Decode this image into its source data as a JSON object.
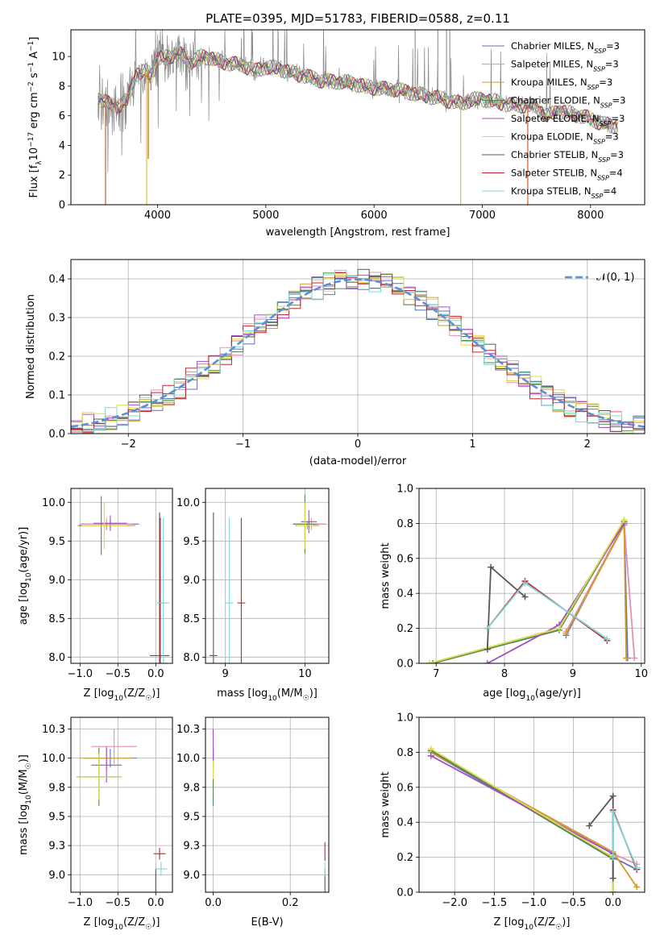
{
  "title": "PLATE=0395, MJD=51783, FIBERID=0588, z=0.11",
  "colors": {
    "palette": [
      "#5b73c6",
      "#e58fb3",
      "#d29a2b",
      "#4f8a52",
      "#a44fc5",
      "#dada4a",
      "#555555",
      "#c0262d",
      "#7fd6d6"
    ],
    "data": "#888888",
    "normal": "#5b8fd8",
    "grid": "#b0b0b0"
  },
  "legend_spectrum": [
    "Chabrier MILES, N_SSP=3",
    "Salpeter MILES, N_SSP=3",
    "Kroupa MILES, N_SSP=3",
    "Chabrier ELODIE, N_SSP=3",
    "Salpeter ELODIE, N_SSP=3",
    "Kroupa ELODIE, N_SSP=3",
    "Chabrier STELIB, N_SSP=3",
    "Salpeter STELIB, N_SSP=4",
    "Kroupa STELIB, N_SSP=4"
  ],
  "legend_hist": "𝒩(0, 1)",
  "chart_data": [
    {
      "id": "spectrum",
      "type": "line",
      "title": "PLATE=0395, MJD=51783, FIBERID=0588, z=0.11",
      "xlabel": "wavelength [Angstrom, rest frame]",
      "ylabel": "Flux [f_λ 10^-17 erg cm^-2 s^-1 A^-1]",
      "xlim": [
        3200,
        8500
      ],
      "ylim": [
        0,
        11.8
      ],
      "xticks": [
        4000,
        5000,
        6000,
        7000,
        8000
      ],
      "yticks": [
        0,
        2,
        4,
        6,
        8,
        10
      ],
      "grid": false,
      "legend_position": "top-right",
      "continuum": [
        [
          3450,
          7.2
        ],
        [
          3550,
          6.8
        ],
        [
          3650,
          6.7
        ],
        [
          3720,
          7.0
        ],
        [
          3800,
          8.8
        ],
        [
          3900,
          9.0
        ],
        [
          3950,
          8.8
        ],
        [
          4000,
          9.8
        ],
        [
          4100,
          10.0
        ],
        [
          4200,
          10.2
        ],
        [
          4300,
          9.6
        ],
        [
          4400,
          10.0
        ],
        [
          4500,
          9.9
        ],
        [
          4600,
          9.6
        ],
        [
          4700,
          9.5
        ],
        [
          4800,
          9.4
        ],
        [
          4900,
          9.0
        ],
        [
          5000,
          9.3
        ],
        [
          5100,
          9.2
        ],
        [
          5200,
          9.0
        ],
        [
          5300,
          8.8
        ],
        [
          5400,
          8.6
        ],
        [
          5500,
          8.4
        ],
        [
          5600,
          8.3
        ],
        [
          5700,
          8.3
        ],
        [
          5800,
          8.2
        ],
        [
          5900,
          8.0
        ],
        [
          6000,
          7.9
        ],
        [
          6100,
          7.8
        ],
        [
          6200,
          7.8
        ],
        [
          6300,
          7.6
        ],
        [
          6400,
          7.5
        ],
        [
          6500,
          7.3
        ],
        [
          6600,
          7.2
        ],
        [
          6700,
          7.0
        ],
        [
          6800,
          6.8
        ],
        [
          6900,
          7.1
        ],
        [
          7000,
          7.1
        ],
        [
          7100,
          7.0
        ],
        [
          7200,
          6.8
        ],
        [
          7300,
          6.7
        ],
        [
          7400,
          6.7
        ],
        [
          7500,
          6.6
        ],
        [
          7600,
          6.0
        ],
        [
          7700,
          6.3
        ],
        [
          7800,
          6.2
        ],
        [
          7900,
          6.0
        ],
        [
          8000,
          5.8
        ],
        [
          8100,
          5.5
        ],
        [
          8200,
          5.3
        ],
        [
          8250,
          5.4
        ]
      ],
      "dips": [
        [
          3520,
          0.0
        ],
        [
          3900,
          0.0
        ],
        [
          3915,
          3.1
        ],
        [
          6800,
          0.0
        ],
        [
          7420,
          0.0
        ]
      ]
    },
    {
      "id": "residuals",
      "type": "histogram",
      "xlabel": "(data-model)/error",
      "ylabel": "Normed distribution",
      "xlim": [
        -2.5,
        2.5
      ],
      "ylim": [
        0,
        0.45
      ],
      "xticks": [
        -2,
        -1,
        0,
        1,
        2
      ],
      "yticks": [
        0.0,
        0.1,
        0.2,
        0.3,
        0.4
      ],
      "grid": true,
      "bin_width": 0.1,
      "legend_position": "top-right"
    },
    {
      "id": "age_vs_Z",
      "type": "errorbar",
      "xlabel": "Z [log10(Z/Z☉)]",
      "ylabel": "age [log10(age/yr)]",
      "xlim": [
        -1.12,
        0.22
      ],
      "ylim": [
        7.92,
        10.18
      ],
      "xticks": [
        -1.0,
        -0.5,
        0.0
      ],
      "yticks": [
        8.0,
        8.5,
        9.0,
        9.5,
        10.0
      ],
      "grid": true,
      "points": [
        {
          "x": -0.6,
          "y": 9.72,
          "xerr": 0.38,
          "yerr": 0.05,
          "c": 0
        },
        {
          "x": -0.65,
          "y": 9.72,
          "xerr": 0.35,
          "yerr": 0.08,
          "c": 1
        },
        {
          "x": -0.65,
          "y": 9.7,
          "xerr": 0.38,
          "yerr": 0.05,
          "c": 2
        },
        {
          "x": -0.72,
          "y": 9.7,
          "xerr": 0.3,
          "yerr": 0.38,
          "c": 3
        },
        {
          "x": -0.6,
          "y": 9.73,
          "xerr": 0.22,
          "yerr": 0.1,
          "c": 4
        },
        {
          "x": -0.68,
          "y": 9.7,
          "xerr": 0.3,
          "yerr": 0.3,
          "c": 5
        },
        {
          "x": 0.05,
          "y": 8.02,
          "xerr": 0.13,
          "yerr": 1.85,
          "c": 6
        },
        {
          "x": 0.06,
          "y": 8.7,
          "xerr": 0.04,
          "yerr": 1.1,
          "c": 7
        },
        {
          "x": 0.1,
          "y": 8.7,
          "xerr": 0.08,
          "yerr": 1.1,
          "c": 8
        }
      ]
    },
    {
      "id": "age_vs_mass",
      "type": "errorbar",
      "xlabel": "mass [log10(M/M☉)]",
      "ylabel": "",
      "xlim": [
        8.75,
        10.3
      ],
      "ylim": [
        7.92,
        10.18
      ],
      "xticks": [
        9,
        10
      ],
      "yticks": [
        8.0,
        8.5,
        9.0,
        9.5,
        10.0
      ],
      "grid": true,
      "points": [
        {
          "x": 10.05,
          "y": 9.72,
          "xerr": 0.2,
          "yerr": 0.05,
          "c": 0
        },
        {
          "x": 10.08,
          "y": 9.72,
          "xerr": 0.2,
          "yerr": 0.08,
          "c": 1
        },
        {
          "x": 10.03,
          "y": 9.7,
          "xerr": 0.15,
          "yerr": 0.05,
          "c": 2
        },
        {
          "x": 10.0,
          "y": 9.72,
          "xerr": 0.15,
          "yerr": 0.38,
          "c": 3
        },
        {
          "x": 10.05,
          "y": 9.75,
          "xerr": 0.1,
          "yerr": 0.15,
          "c": 4
        },
        {
          "x": 10.0,
          "y": 9.7,
          "xerr": 0.1,
          "yerr": 0.3,
          "c": 5
        },
        {
          "x": 8.85,
          "y": 8.02,
          "xerr": 0.05,
          "yerr": 1.85,
          "c": 6
        },
        {
          "x": 9.2,
          "y": 8.7,
          "xerr": 0.05,
          "yerr": 1.1,
          "c": 7
        },
        {
          "x": 9.05,
          "y": 8.7,
          "xerr": 0.05,
          "yerr": 1.1,
          "c": 8
        }
      ]
    },
    {
      "id": "weight_vs_age",
      "type": "line",
      "xlabel": "age [log10(age/yr)]",
      "ylabel": "mass weight",
      "xlim": [
        6.75,
        10.05
      ],
      "ylim": [
        0,
        1.0
      ],
      "xticks": [
        7,
        8,
        9,
        10
      ],
      "yticks": [
        0.0,
        0.2,
        0.4,
        0.6,
        0.8,
        1.0
      ],
      "grid": true,
      "series": [
        {
          "c": 0,
          "x": [
            8.9,
            9.75,
            9.8
          ],
          "y": [
            0.16,
            0.8,
            0.03
          ]
        },
        {
          "c": 1,
          "x": [
            8.9,
            9.75,
            9.9
          ],
          "y": [
            0.18,
            0.8,
            0.03
          ]
        },
        {
          "c": 2,
          "x": [
            8.9,
            9.75,
            9.78
          ],
          "y": [
            0.17,
            0.79,
            0.03
          ]
        },
        {
          "c": 3,
          "x": [
            6.95,
            8.8,
            9.75
          ],
          "y": [
            0.0,
            0.19,
            0.81
          ]
        },
        {
          "c": 4,
          "x": [
            7.75,
            8.8,
            9.75
          ],
          "y": [
            0.0,
            0.22,
            0.8
          ]
        },
        {
          "c": 5,
          "x": [
            6.9,
            8.8,
            9.75
          ],
          "y": [
            0.0,
            0.2,
            0.82
          ]
        },
        {
          "c": 6,
          "x": [
            7.75,
            7.8,
            8.3
          ],
          "y": [
            0.08,
            0.55,
            0.38
          ]
        },
        {
          "c": 7,
          "x": [
            7.75,
            8.3,
            9.5
          ],
          "y": [
            0.2,
            0.47,
            0.13
          ]
        },
        {
          "c": 8,
          "x": [
            7.75,
            8.3,
            9.5
          ],
          "y": [
            0.2,
            0.46,
            0.14
          ]
        }
      ]
    },
    {
      "id": "mass_vs_Z",
      "type": "errorbar",
      "xlabel": "Z [log10(Z/Z☉)]",
      "ylabel": "mass [log10(M/M☉)]",
      "xlim": [
        -1.12,
        0.22
      ],
      "ylim": [
        8.85,
        10.35
      ],
      "xticks": [
        -1.0,
        -0.5,
        0.0
      ],
      "yticks": [
        9.0,
        9.25,
        9.5,
        9.75,
        10.0,
        10.25
      ],
      "grid": true,
      "points": [
        {
          "x": -0.6,
          "y": 10.0,
          "xerr": 0.35,
          "yerr": 0.08,
          "c": 0
        },
        {
          "x": -0.55,
          "y": 10.1,
          "xerr": 0.3,
          "yerr": 0.15,
          "c": 1
        },
        {
          "x": -0.65,
          "y": 10.0,
          "xerr": 0.35,
          "yerr": 0.1,
          "c": 2
        },
        {
          "x": -0.75,
          "y": 9.84,
          "xerr": 0.3,
          "yerr": 0.25,
          "c": 3
        },
        {
          "x": -0.65,
          "y": 9.94,
          "xerr": 0.2,
          "yerr": 0.15,
          "c": 4
        },
        {
          "x": -0.75,
          "y": 9.84,
          "xerr": 0.3,
          "yerr": 0.2,
          "c": 5
        },
        {
          "x": 0.0,
          "y": 8.85,
          "xerr": 0.12,
          "yerr": 0.2,
          "c": 6
        },
        {
          "x": 0.05,
          "y": 9.18,
          "xerr": 0.08,
          "yerr": 0.05,
          "c": 7
        },
        {
          "x": 0.07,
          "y": 9.05,
          "xerr": 0.08,
          "yerr": 0.06,
          "c": 8
        }
      ]
    },
    {
      "id": "mass_vs_EBV",
      "type": "errorbar",
      "xlabel": "E(B-V)",
      "ylabel": "",
      "xlim": [
        -0.02,
        0.3
      ],
      "ylim": [
        8.85,
        10.35
      ],
      "xticks": [
        0.0,
        0.2
      ],
      "yticks": [
        9.0,
        9.25,
        9.5,
        9.75,
        10.0,
        10.25
      ],
      "grid": true,
      "points": [
        {
          "x": 0.0,
          "y": 10.0,
          "xerr": 0.0,
          "yerr": 0.08,
          "c": 0
        },
        {
          "x": 0.0,
          "y": 10.1,
          "xerr": 0.0,
          "yerr": 0.15,
          "c": 1
        },
        {
          "x": 0.0,
          "y": 10.0,
          "xerr": 0.0,
          "yerr": 0.1,
          "c": 2
        },
        {
          "x": 0.0,
          "y": 9.84,
          "xerr": 0.0,
          "yerr": 0.25,
          "c": 3
        },
        {
          "x": 0.0,
          "y": 10.1,
          "xerr": 0.0,
          "yerr": 0.15,
          "c": 4
        },
        {
          "x": 0.0,
          "y": 9.9,
          "xerr": 0.0,
          "yerr": 0.08,
          "c": 5
        },
        {
          "x": 0.29,
          "y": 8.95,
          "xerr": 0.0,
          "yerr": 0.1,
          "c": 6
        },
        {
          "x": 0.29,
          "y": 9.2,
          "xerr": 0.0,
          "yerr": 0.08,
          "c": 7
        },
        {
          "x": 0.29,
          "y": 9.05,
          "xerr": 0.0,
          "yerr": 0.06,
          "c": 8
        }
      ]
    },
    {
      "id": "weight_vs_Z",
      "type": "line",
      "xlabel": "Z [log10(Z/Z☉)]",
      "ylabel": "mass weight",
      "xlim": [
        -2.45,
        0.4
      ],
      "ylim": [
        0,
        1.0
      ],
      "xticks": [
        -2.0,
        -1.5,
        -1.0,
        -0.5,
        0.0
      ],
      "yticks": [
        0.0,
        0.2,
        0.4,
        0.6,
        0.8,
        1.0
      ],
      "grid": true,
      "series": [
        {
          "c": 0,
          "x": [
            -2.3,
            0.0,
            0.3
          ],
          "y": [
            0.8,
            0.2,
            0.13
          ]
        },
        {
          "c": 1,
          "x": [
            -2.3,
            0.0,
            0.3
          ],
          "y": [
            0.81,
            0.22,
            0.16
          ]
        },
        {
          "c": 2,
          "x": [
            -2.3,
            0.0,
            0.3
          ],
          "y": [
            0.8,
            0.23,
            0.03
          ]
        },
        {
          "c": 3,
          "x": [
            -2.3,
            0.0,
            0.0
          ],
          "y": [
            0.81,
            0.19,
            0.0
          ]
        },
        {
          "c": 4,
          "x": [
            -2.3,
            0.0,
            0.0
          ],
          "y": [
            0.78,
            0.22,
            0.0
          ]
        },
        {
          "c": 5,
          "x": [
            -2.3,
            0.0,
            0.0
          ],
          "y": [
            0.82,
            0.2,
            0.0
          ]
        },
        {
          "c": 6,
          "x": [
            -0.3,
            0.0,
            0.0
          ],
          "y": [
            0.38,
            0.55,
            0.08
          ]
        },
        {
          "c": 7,
          "x": [
            0.0,
            0.0,
            0.3
          ],
          "y": [
            0.2,
            0.47,
            0.13
          ]
        },
        {
          "c": 8,
          "x": [
            0.0,
            0.0,
            0.3
          ],
          "y": [
            0.2,
            0.46,
            0.14
          ]
        }
      ]
    }
  ]
}
